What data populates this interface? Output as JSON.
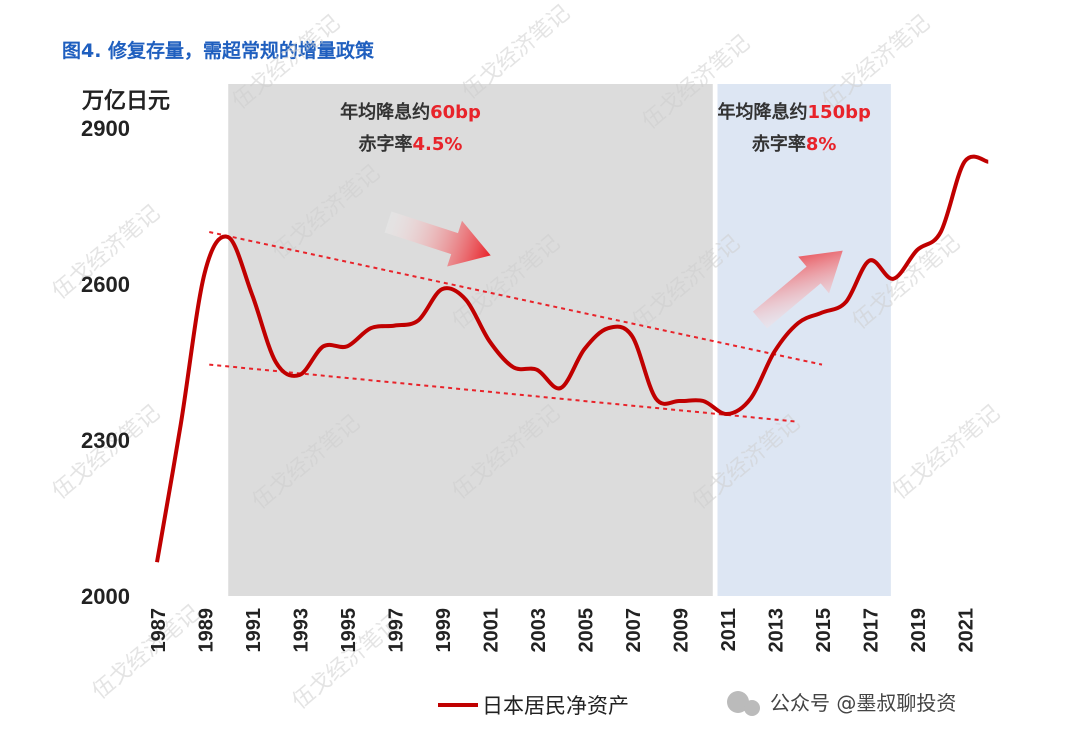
{
  "figure_title": "图4. 修复存量，需超常规的增量政策",
  "chart_data": {
    "type": "line",
    "ylabel": "万亿日元",
    "ylim": [
      2000,
      2900
    ],
    "yticks": [
      2000,
      2300,
      2600,
      2900
    ],
    "xlim": [
      1987,
      2023
    ],
    "xticks": [
      "1987",
      "1989",
      "1991",
      "1993",
      "1995",
      "1997",
      "1999",
      "2001",
      "2003",
      "2005",
      "2007",
      "2009",
      "2011",
      "2013",
      "2015",
      "2017",
      "2019",
      "2021"
    ],
    "series": [
      {
        "name": "日本居民净资产",
        "color": "#c00000",
        "x": [
          1987,
          1988,
          1989,
          1990,
          1991,
          1992,
          1993,
          1994,
          1995,
          1996,
          1997,
          1998,
          1999,
          2000,
          2001,
          2002,
          2003,
          2004,
          2005,
          2006,
          2007,
          2008,
          2009,
          2010,
          2011,
          2012,
          2013,
          2014,
          2015,
          2016,
          2017,
          2018,
          2019,
          2020,
          2021,
          2022
        ],
        "y": [
          2065,
          2330,
          2620,
          2690,
          2580,
          2450,
          2425,
          2480,
          2480,
          2515,
          2520,
          2530,
          2590,
          2570,
          2490,
          2440,
          2435,
          2400,
          2475,
          2515,
          2500,
          2380,
          2375,
          2375,
          2350,
          2380,
          2470,
          2525,
          2545,
          2565,
          2645,
          2610,
          2665,
          2700,
          2835,
          2835
        ]
      }
    ],
    "shaded_periods": [
      {
        "from": 1990,
        "to": 2010.4,
        "color": "#dcdcdc",
        "label_lines": [
          [
            "年均降息约",
            "60bp"
          ],
          [
            "赤字率",
            "4.5%"
          ]
        ]
      },
      {
        "from": 2010.6,
        "to": 2017.9,
        "color": "#dde6f3",
        "label_lines": [
          [
            "年均降息约",
            "150bp"
          ],
          [
            "赤字率",
            "8%"
          ]
        ]
      }
    ],
    "trend_lines": [
      {
        "x": [
          1989.2,
          2015.0
        ],
        "y": [
          2700,
          2445
        ],
        "style": "dashed",
        "color": "#e8232a"
      },
      {
        "x": [
          1989.2,
          2014.0
        ],
        "y": [
          2445,
          2335
        ],
        "style": "dashed",
        "color": "#e8232a"
      }
    ],
    "grid": false,
    "legend": "bottom-center"
  },
  "watermark": {
    "text": "伍戈经济笔记",
    "source": "公众号 @墨叔聊投资"
  },
  "colors": {
    "title": "#1f5fbf",
    "accent_red": "#e8232a",
    "line": "#c00000"
  }
}
